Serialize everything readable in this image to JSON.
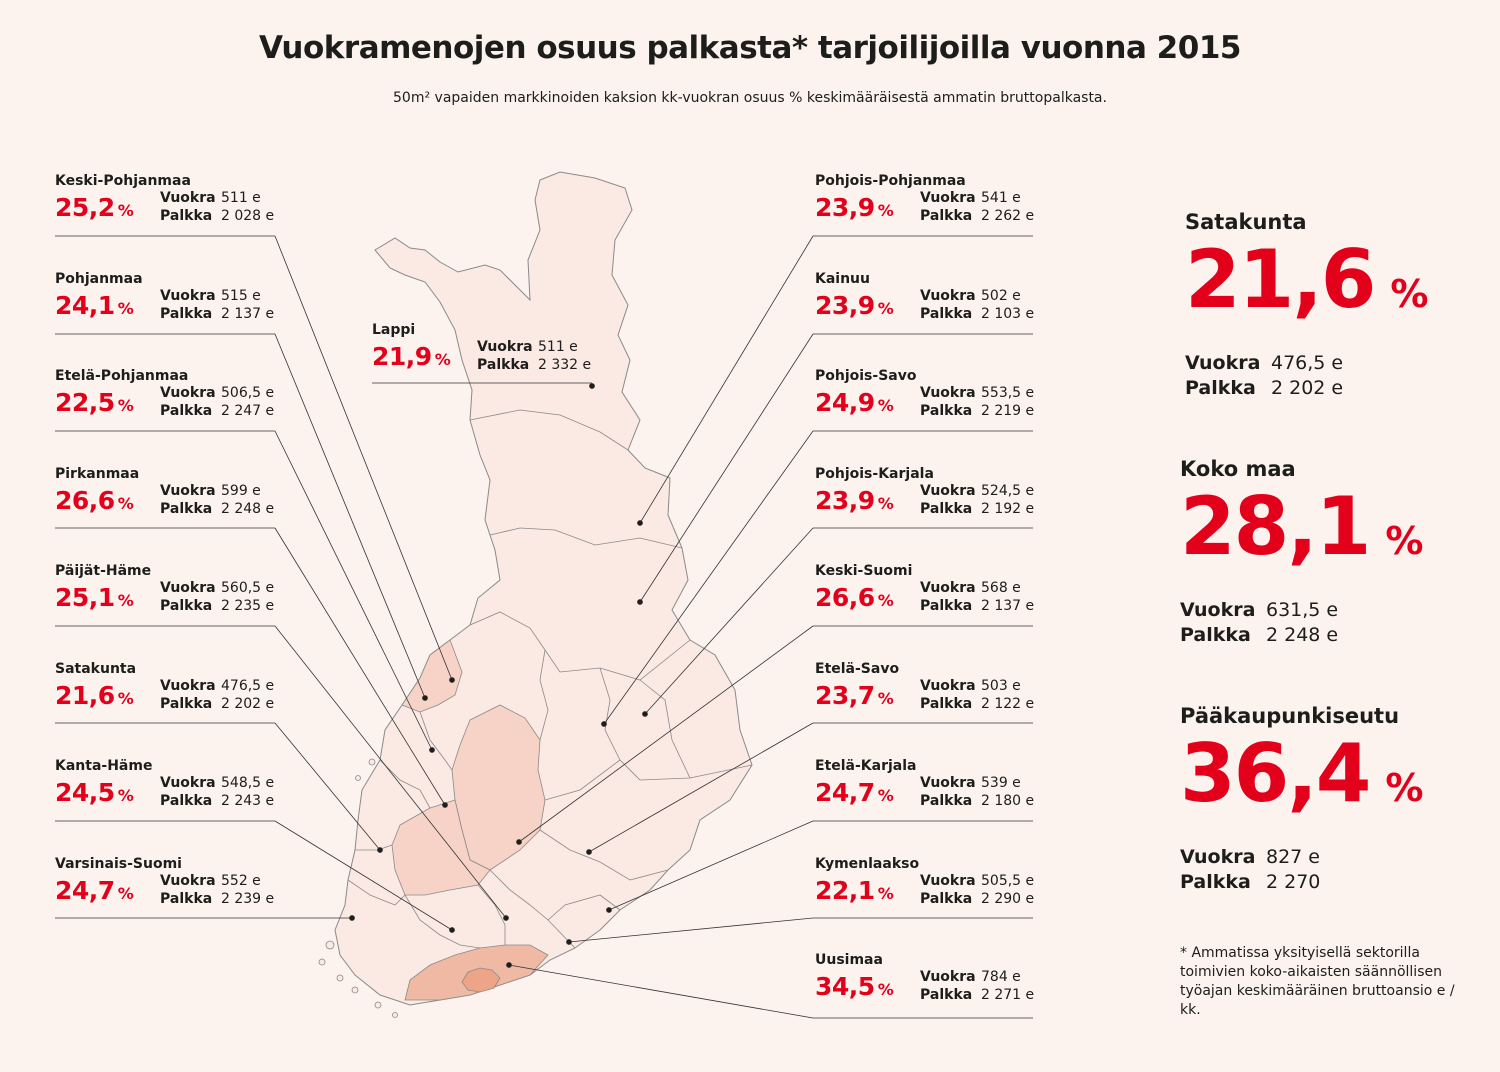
{
  "header": {
    "title": "Vuokramenojen osuus palkasta* tarjoilijoilla vuonna 2015",
    "subtitle": "50m² vapaiden markkinoiden kaksion kk-vuokran osuus % keskimääräisestä ammatin bruttopalkasta."
  },
  "labels": {
    "rent": "Vuokra",
    "salary": "Palkka",
    "percent_sign": "%"
  },
  "regions": {
    "keski_pohjanmaa": {
      "name": "Keski-Pohjanmaa",
      "percent": "25,2",
      "rent": "511 e",
      "salary": "2 028 e"
    },
    "pohjanmaa": {
      "name": "Pohjanmaa",
      "percent": "24,1",
      "rent": "515 e",
      "salary": "2 137 e"
    },
    "etela_pohjanmaa": {
      "name": "Etelä-Pohjanmaa",
      "percent": "22,5",
      "rent": "506,5 e",
      "salary": "2 247 e"
    },
    "pirkanmaa": {
      "name": "Pirkanmaa",
      "percent": "26,6",
      "rent": "599 e",
      "salary": "2 248 e"
    },
    "paijat_hame": {
      "name": "Päijät-Häme",
      "percent": "25,1",
      "rent": "560,5 e",
      "salary": "2 235 e"
    },
    "satakunta": {
      "name": "Satakunta",
      "percent": "21,6",
      "rent": "476,5 e",
      "salary": "2 202 e"
    },
    "kanta_hame": {
      "name": "Kanta-Häme",
      "percent": "24,5",
      "rent": "548,5 e",
      "salary": "2 243 e"
    },
    "varsinais_suomi": {
      "name": "Varsinais-Suomi",
      "percent": "24,7",
      "rent": "552 e",
      "salary": "2 239 e"
    },
    "lappi": {
      "name": "Lappi",
      "percent": "21,9",
      "rent": "511 e",
      "salary": "2 332 e"
    },
    "pohjois_pohjanmaa": {
      "name": "Pohjois-Pohjanmaa",
      "percent": "23,9",
      "rent": "541 e",
      "salary": "2 262 e"
    },
    "kainuu": {
      "name": "Kainuu",
      "percent": "23,9",
      "rent": "502 e",
      "salary": "2 103 e"
    },
    "pohjois_savo": {
      "name": "Pohjois-Savo",
      "percent": "24,9",
      "rent": "553,5 e",
      "salary": "2 219 e"
    },
    "pohjois_karjala": {
      "name": "Pohjois-Karjala",
      "percent": "23,9",
      "rent": "524,5 e",
      "salary": "2 192 e"
    },
    "keski_suomi": {
      "name": "Keski-Suomi",
      "percent": "26,6",
      "rent": "568 e",
      "salary": "2 137 e"
    },
    "etela_savo": {
      "name": "Etelä-Savo",
      "percent": "23,7",
      "rent": "503 e",
      "salary": "2 122 e"
    },
    "etela_karjala": {
      "name": "Etelä-Karjala",
      "percent": "24,7",
      "rent": "539 e",
      "salary": "2 180 e"
    },
    "kymenlaakso": {
      "name": "Kymenlaakso",
      "percent": "22,1",
      "rent": "505,5 e",
      "salary": "2 290 e"
    },
    "uusimaa": {
      "name": "Uusimaa",
      "percent": "34,5",
      "rent": "784 e",
      "salary": "2 271 e"
    }
  },
  "highlights": {
    "satakunta": {
      "name": "Satakunta",
      "percent": "21,6",
      "rent": "476,5 e",
      "salary": "2 202 e"
    },
    "koko_maa": {
      "name": "Koko maa",
      "percent": "28,1",
      "rent": "631,5 e",
      "salary": "2 248 e"
    },
    "paakaupunkiseutu": {
      "name": "Pääkaupunkiseutu",
      "percent": "36,4",
      "rent": "827 e",
      "salary": "2 270"
    }
  },
  "footnote": "* Ammatissa yksityisellä sektorilla toimivien koko-aikaisten säännöllisen työajan keskimääräinen bruttoansio e / kk.",
  "colors": {
    "accent_red": "#e3001b",
    "background": "#fcf2ee",
    "map_light": "#fbe9e3",
    "map_medium": "#f6d3c6",
    "map_dark": "#efb9a4",
    "helsinki_area": "#eda487",
    "region_border": "#8a8a8a"
  }
}
